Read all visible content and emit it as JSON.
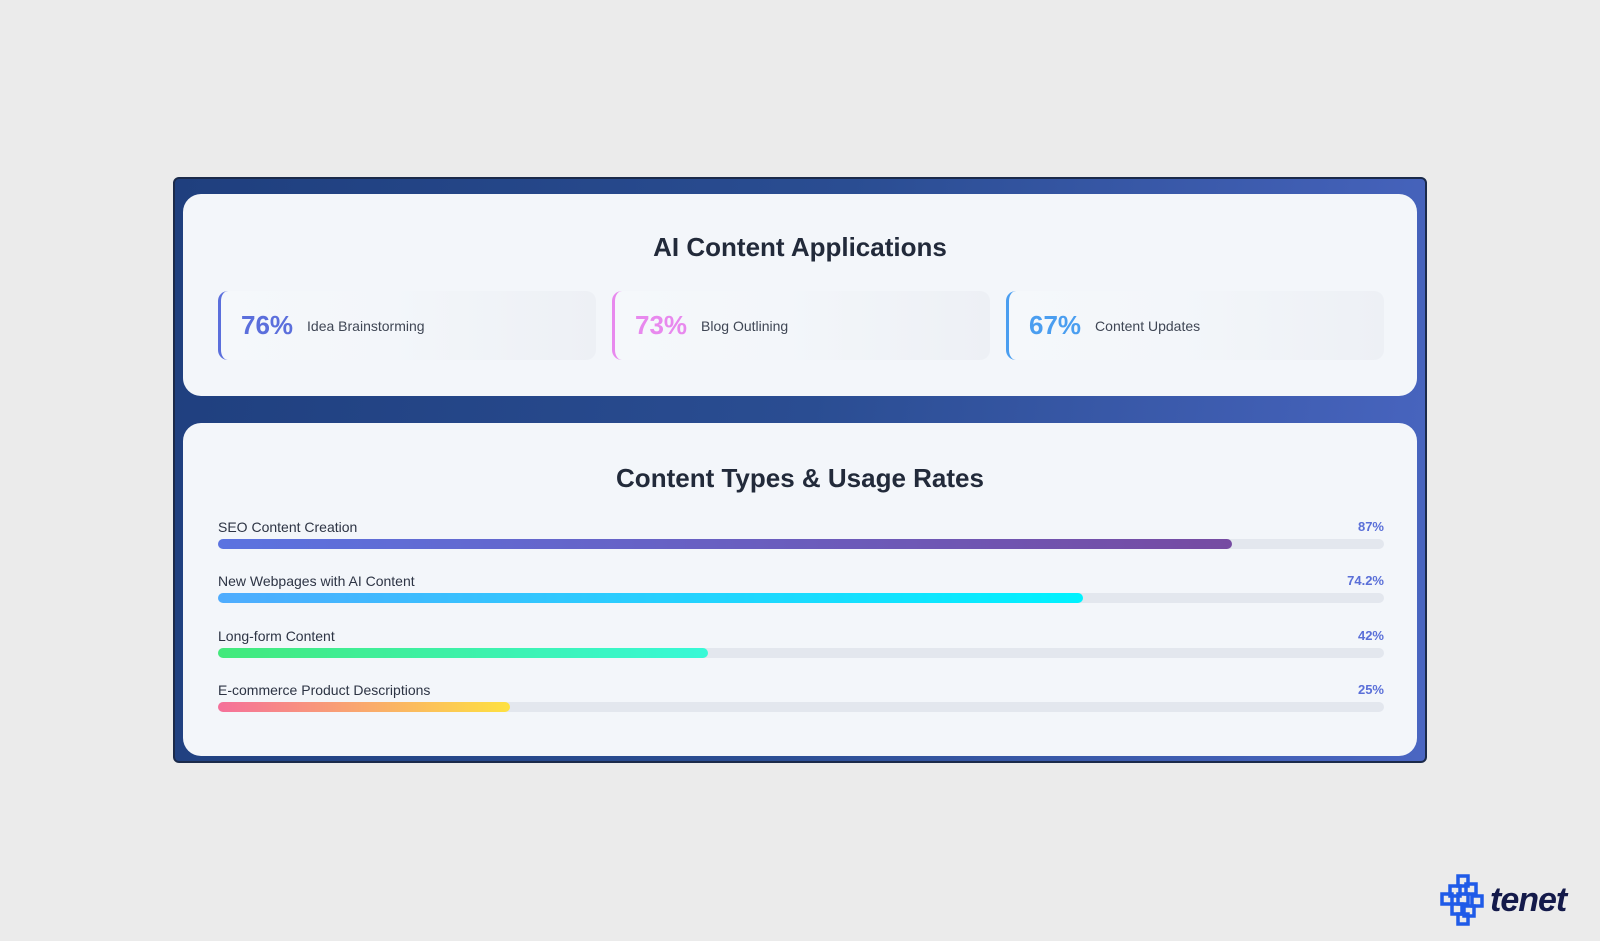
{
  "applications": {
    "title": "AI Content Applications",
    "stats": [
      {
        "value": "76%",
        "label": "Idea Brainstorming",
        "color": "#5b6fdc"
      },
      {
        "value": "73%",
        "label": "Blog Outlining",
        "color": "#e889ee"
      },
      {
        "value": "67%",
        "label": "Content Updates",
        "color": "#4a9ef0"
      }
    ]
  },
  "usage": {
    "title": "Content Types & Usage Rates",
    "rows": [
      {
        "label": "SEO Content Creation",
        "value_text": "87%",
        "percent": 87,
        "gradient": [
          "#5b73e0",
          "#764ba2"
        ]
      },
      {
        "label": "New Webpages with AI Content",
        "value_text": "74.2%",
        "percent": 74.2,
        "gradient": [
          "#4facfe",
          "#00f2fe"
        ]
      },
      {
        "label": "Long-form Content",
        "value_text": "42%",
        "percent": 42,
        "gradient": [
          "#43e97b",
          "#38f9d7"
        ]
      },
      {
        "label": "E-commerce Product Descriptions",
        "value_text": "25%",
        "percent": 25,
        "gradient": [
          "#f5709a",
          "#fee140"
        ]
      }
    ]
  },
  "brand": {
    "logo_text": "tenet",
    "color": "#1f5be8"
  }
}
